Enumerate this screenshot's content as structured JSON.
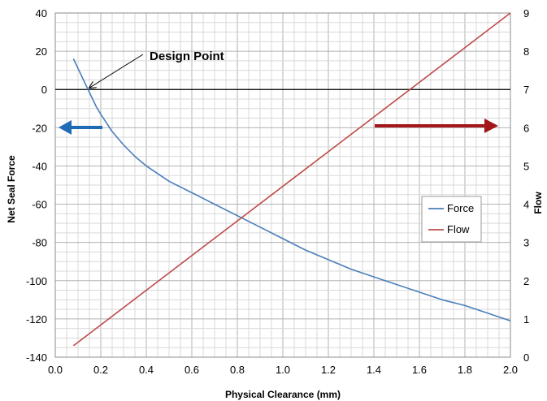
{
  "chart_data": {
    "type": "line",
    "xlabel": "Physical Clearance (mm)",
    "ylabel": "Net Seal Force",
    "y2label": "Flow",
    "xlim": [
      0.0,
      2.0
    ],
    "ylim": [
      -140,
      40
    ],
    "y2lim": [
      0,
      9
    ],
    "x_ticks": [
      "0.0",
      "0.2",
      "0.4",
      "0.6",
      "0.8",
      "1.0",
      "1.2",
      "1.4",
      "1.6",
      "1.8",
      "2.0"
    ],
    "y_ticks": [
      "40",
      "20",
      "0",
      "-20",
      "-40",
      "-60",
      "-80",
      "-100",
      "-120",
      "-140"
    ],
    "y2_ticks": [
      "9",
      "8",
      "7",
      "6",
      "5",
      "4",
      "3",
      "2",
      "1",
      "0"
    ],
    "grid": true,
    "zero_line": 0,
    "legend_position": "right",
    "series": [
      {
        "name": "Force",
        "axis": "left",
        "color": "#4a7ebb",
        "x": [
          0.08,
          0.1,
          0.12,
          0.14,
          0.16,
          0.18,
          0.2,
          0.25,
          0.3,
          0.35,
          0.4,
          0.5,
          0.6,
          0.7,
          0.8,
          0.9,
          1.0,
          1.1,
          1.2,
          1.3,
          1.4,
          1.5,
          1.6,
          1.7,
          1.8,
          1.9,
          2.0
        ],
        "y": [
          16,
          11,
          6,
          1,
          -4,
          -9,
          -13,
          -22,
          -29,
          -35,
          -40,
          -48,
          -54,
          -60,
          -66,
          -72,
          -78,
          -84,
          -89,
          -94,
          -98,
          -102,
          -106,
          -110,
          -113,
          -117,
          -121
        ]
      },
      {
        "name": "Flow",
        "axis": "right",
        "color": "#be4b48",
        "x": [
          0.08,
          2.0
        ],
        "y": [
          0.3,
          9.0
        ]
      }
    ],
    "annotations": [
      {
        "text": "Design Point",
        "arrow_to": [
          0.15,
          0
        ]
      }
    ],
    "direction_arrows": [
      {
        "direction": "left",
        "color": "#1f6bb5"
      },
      {
        "direction": "right",
        "color": "#a4161a"
      }
    ]
  }
}
